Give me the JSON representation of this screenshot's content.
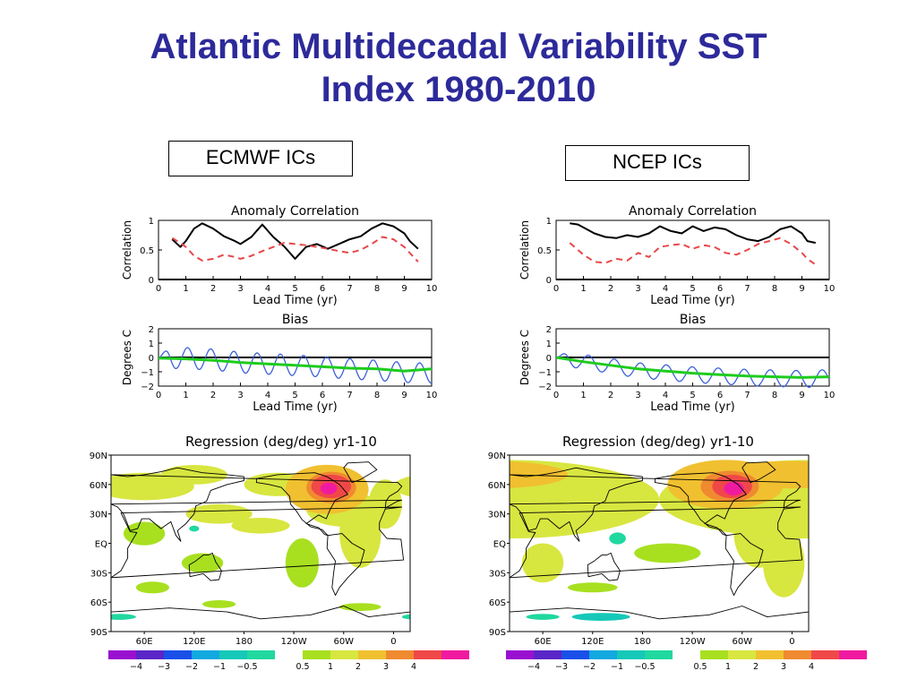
{
  "title": {
    "line1": "Atlantic Multidecadal Variability SST",
    "line2": "Index  1980-2010"
  },
  "ic_labels": {
    "left": "ECMWF ICs",
    "right": "NCEP ICs"
  },
  "colors": {
    "title": "#2d2a9a",
    "black": "#000000",
    "red_dash": "#e8474a",
    "blue": "#3b62d8",
    "green": "#1ecc1e"
  },
  "chart_data": [
    {
      "panel": "ECMWF ICs",
      "type": "line",
      "title": "Anomaly Correlation",
      "xlabel": "Lead Time (yr)",
      "ylabel": "Correlation",
      "xlim": [
        0,
        10
      ],
      "ylim": [
        0,
        1
      ],
      "xticks": [
        "0",
        "1",
        "2",
        "3",
        "4",
        "5",
        "6",
        "7",
        "8",
        "9",
        "10"
      ],
      "yticks": [
        "0",
        "0.5",
        "1"
      ],
      "grid": false,
      "series": [
        {
          "style": "solid-black",
          "x": [
            0.5,
            0.8,
            1.0,
            1.3,
            1.6,
            2.0,
            2.4,
            2.8,
            3.0,
            3.4,
            3.8,
            4.2,
            4.6,
            5.0,
            5.4,
            5.8,
            6.2,
            6.6,
            7.0,
            7.4,
            7.8,
            8.2,
            8.6,
            9.0,
            9.2,
            9.5
          ],
          "y": [
            0.68,
            0.55,
            0.65,
            0.86,
            0.95,
            0.86,
            0.73,
            0.65,
            0.6,
            0.72,
            0.93,
            0.72,
            0.56,
            0.35,
            0.55,
            0.6,
            0.52,
            0.6,
            0.68,
            0.73,
            0.86,
            0.95,
            0.9,
            0.78,
            0.65,
            0.52
          ]
        },
        {
          "style": "dashed-red",
          "x": [
            0.5,
            0.8,
            1.0,
            1.3,
            1.6,
            2.0,
            2.4,
            2.8,
            3.0,
            3.4,
            3.8,
            4.2,
            4.6,
            5.0,
            5.4,
            5.8,
            6.2,
            6.6,
            7.0,
            7.4,
            7.8,
            8.2,
            8.6,
            9.0,
            9.2,
            9.5
          ],
          "y": [
            0.7,
            0.62,
            0.55,
            0.4,
            0.32,
            0.35,
            0.42,
            0.38,
            0.35,
            0.4,
            0.48,
            0.55,
            0.62,
            0.6,
            0.58,
            0.55,
            0.52,
            0.48,
            0.45,
            0.5,
            0.6,
            0.72,
            0.68,
            0.55,
            0.45,
            0.3
          ]
        }
      ]
    },
    {
      "panel": "NCEP ICs",
      "type": "line",
      "title": "Anomaly Correlation",
      "xlabel": "Lead Time (yr)",
      "ylabel": "Correlation",
      "xlim": [
        0,
        10
      ],
      "ylim": [
        0,
        1
      ],
      "xticks": [
        "0",
        "1",
        "2",
        "3",
        "4",
        "5",
        "6",
        "7",
        "8",
        "9",
        "10"
      ],
      "yticks": [
        "0",
        "0.5",
        "1"
      ],
      "grid": false,
      "series": [
        {
          "style": "solid-black",
          "x": [
            0.5,
            0.8,
            1.0,
            1.4,
            1.8,
            2.2,
            2.6,
            3.0,
            3.4,
            3.8,
            4.2,
            4.6,
            5.0,
            5.4,
            5.8,
            6.2,
            6.6,
            7.0,
            7.4,
            7.8,
            8.2,
            8.6,
            9.0,
            9.2,
            9.5
          ],
          "y": [
            0.95,
            0.93,
            0.88,
            0.78,
            0.72,
            0.7,
            0.75,
            0.72,
            0.78,
            0.9,
            0.82,
            0.78,
            0.9,
            0.82,
            0.88,
            0.85,
            0.75,
            0.68,
            0.65,
            0.72,
            0.85,
            0.9,
            0.78,
            0.65,
            0.62
          ]
        },
        {
          "style": "dashed-red",
          "x": [
            0.5,
            0.8,
            1.0,
            1.4,
            1.8,
            2.2,
            2.6,
            3.0,
            3.4,
            3.8,
            4.2,
            4.6,
            5.0,
            5.4,
            5.8,
            6.2,
            6.6,
            7.0,
            7.4,
            7.8,
            8.2,
            8.6,
            9.0,
            9.2,
            9.5
          ],
          "y": [
            0.62,
            0.5,
            0.42,
            0.3,
            0.28,
            0.35,
            0.32,
            0.45,
            0.38,
            0.55,
            0.58,
            0.6,
            0.52,
            0.58,
            0.55,
            0.45,
            0.42,
            0.5,
            0.6,
            0.65,
            0.7,
            0.6,
            0.45,
            0.35,
            0.25
          ]
        }
      ]
    },
    {
      "panel": "ECMWF ICs",
      "type": "line",
      "title": "Bias",
      "xlabel": "Lead Time (yr)",
      "ylabel": "Degrees C",
      "xlim": [
        0,
        10
      ],
      "ylim": [
        -2,
        2
      ],
      "xticks": [
        "0",
        "1",
        "2",
        "3",
        "4",
        "5",
        "6",
        "7",
        "8",
        "9",
        "10"
      ],
      "yticks": [
        "-2",
        "-1",
        "0",
        "1",
        "2"
      ],
      "grid": false,
      "series": [
        {
          "style": "solid-blue",
          "oscillation": {
            "amp_start": 0.75,
            "amp_end": 0.7,
            "period": 0.85
          },
          "x": [
            0,
            1,
            2,
            3,
            4,
            5,
            6,
            7,
            8,
            9,
            10
          ],
          "y": [
            0,
            -0.05,
            -0.15,
            -0.35,
            -0.45,
            -0.55,
            -0.65,
            -0.8,
            -0.9,
            -1.05,
            -1.1
          ]
        },
        {
          "style": "solid-green",
          "x": [
            0,
            1,
            2,
            3,
            4,
            5,
            6,
            7,
            8,
            9,
            10
          ],
          "y": [
            -0.05,
            -0.1,
            -0.2,
            -0.35,
            -0.45,
            -0.55,
            -0.65,
            -0.75,
            -0.8,
            -0.95,
            -0.8
          ]
        }
      ]
    },
    {
      "panel": "NCEP ICs",
      "type": "line",
      "title": "Bias",
      "xlabel": "Lead Time (yr)",
      "ylabel": "Degrees C",
      "xlim": [
        0,
        10
      ],
      "ylim": [
        -2,
        2
      ],
      "xticks": [
        "0",
        "1",
        "2",
        "3",
        "4",
        "5",
        "6",
        "7",
        "8",
        "9",
        "10"
      ],
      "yticks": [
        "-2",
        "-1",
        "0",
        "1",
        "2"
      ],
      "grid": false,
      "series": [
        {
          "style": "solid-blue",
          "oscillation": {
            "amp_start": 0.5,
            "amp_end": 0.6,
            "period": 0.95
          },
          "x": [
            0,
            1,
            2,
            3,
            4,
            5,
            6,
            7,
            8,
            9,
            10
          ],
          "y": [
            0,
            -0.3,
            -0.6,
            -0.9,
            -1.05,
            -1.2,
            -1.3,
            -1.4,
            -1.45,
            -1.5,
            -1.45
          ]
        },
        {
          "style": "solid-green",
          "x": [
            0,
            1,
            2,
            3,
            4,
            5,
            6,
            7,
            8,
            9,
            10
          ],
          "y": [
            0,
            -0.3,
            -0.55,
            -0.8,
            -0.95,
            -1.1,
            -1.2,
            -1.3,
            -1.35,
            -1.4,
            -1.35
          ]
        }
      ]
    },
    {
      "panel": "ECMWF ICs",
      "type": "heatmap",
      "title": "Regression (deg/deg) yr1-10",
      "lat_ticks": [
        "90N",
        "60N",
        "30N",
        "EQ",
        "30S",
        "60S",
        "90S"
      ],
      "lon_ticks": [
        "60E",
        "120E",
        "180",
        "120W",
        "60W",
        "0"
      ],
      "blobs": [
        {
          "lon": -75,
          "lat": 57,
          "rx": 30,
          "ry": 16,
          "level": 4
        },
        {
          "lon": -75,
          "lat": 58,
          "rx": 24,
          "ry": 12,
          "level": 5
        },
        {
          "lon": -78,
          "lat": 56,
          "rx": 10,
          "ry": 6,
          "level": 6
        },
        {
          "lon": -80,
          "lat": 55,
          "rx": 50,
          "ry": 25,
          "level": 3
        },
        {
          "lon": -60,
          "lat": 35,
          "rx": 45,
          "ry": 18,
          "level": 2
        },
        {
          "lon": -40,
          "lat": 10,
          "rx": 25,
          "ry": 35,
          "level": 2
        },
        {
          "lon": -10,
          "lat": 40,
          "rx": 20,
          "ry": 25,
          "level": 2
        },
        {
          "lon": -140,
          "lat": 60,
          "rx": 40,
          "ry": 12,
          "level": 2
        },
        {
          "lon": 60,
          "lat": 58,
          "rx": 60,
          "ry": 14,
          "level": 2
        },
        {
          "lon": 120,
          "lat": 70,
          "rx": 40,
          "ry": 10,
          "level": 2
        },
        {
          "lon": 150,
          "lat": 30,
          "rx": 40,
          "ry": 10,
          "level": 2
        },
        {
          "lon": -160,
          "lat": 18,
          "rx": 35,
          "ry": 8,
          "level": 2
        },
        {
          "lon": 60,
          "lat": 10,
          "rx": 25,
          "ry": 12,
          "level": 1
        },
        {
          "lon": 130,
          "lat": -20,
          "rx": 25,
          "ry": 10,
          "level": 1
        },
        {
          "lon": 70,
          "lat": -45,
          "rx": 20,
          "ry": 6,
          "level": 1
        },
        {
          "lon": 150,
          "lat": -62,
          "rx": 20,
          "ry": 4,
          "level": 1
        },
        {
          "lon": -110,
          "lat": -20,
          "rx": 20,
          "ry": 25,
          "level": 1
        },
        {
          "lon": 120,
          "lat": 15,
          "rx": 6,
          "ry": 3,
          "level": -1
        },
        {
          "lon": 30,
          "lat": -75,
          "rx": 20,
          "ry": 3,
          "level": -1
        },
        {
          "lon": -40,
          "lat": -65,
          "rx": 25,
          "ry": 4,
          "level": 1
        }
      ]
    },
    {
      "panel": "NCEP ICs",
      "type": "heatmap",
      "title": "Regression (deg/deg) yr1-10",
      "lat_ticks": [
        "90N",
        "60N",
        "30N",
        "EQ",
        "30S",
        "60S",
        "90S"
      ],
      "lon_ticks": [
        "60E",
        "120E",
        "180",
        "120W",
        "60W",
        "0"
      ],
      "blobs": [
        {
          "lon": -75,
          "lat": 58,
          "rx": 35,
          "ry": 16,
          "level": 4
        },
        {
          "lon": -72,
          "lat": 58,
          "rx": 24,
          "ry": 12,
          "level": 5
        },
        {
          "lon": -70,
          "lat": 56,
          "rx": 12,
          "ry": 7,
          "level": 6
        },
        {
          "lon": -80,
          "lat": 60,
          "rx": 70,
          "ry": 25,
          "level": 3
        },
        {
          "lon": 0,
          "lat": 70,
          "rx": 90,
          "ry": 14,
          "level": 3
        },
        {
          "lon": 20,
          "lat": 45,
          "rx": 180,
          "ry": 40,
          "level": 2
        },
        {
          "lon": -40,
          "lat": 10,
          "rx": 30,
          "ry": 35,
          "level": 2
        },
        {
          "lon": -10,
          "lat": -20,
          "rx": 25,
          "ry": 35,
          "level": 2
        },
        {
          "lon": 60,
          "lat": -20,
          "rx": 25,
          "ry": 20,
          "level": 2
        },
        {
          "lon": -150,
          "lat": -10,
          "rx": 40,
          "ry": 10,
          "level": 1
        },
        {
          "lon": 120,
          "lat": -45,
          "rx": 30,
          "ry": 5,
          "level": 1
        },
        {
          "lon": -95,
          "lat": 22,
          "rx": 8,
          "ry": 8,
          "level": -1
        },
        {
          "lon": 150,
          "lat": 5,
          "rx": 10,
          "ry": 6,
          "level": -1
        },
        {
          "lon": 130,
          "lat": -75,
          "rx": 35,
          "ry": 4,
          "level": -2
        },
        {
          "lon": 60,
          "lat": -75,
          "rx": 20,
          "ry": 3,
          "level": -1
        }
      ]
    }
  ],
  "colorbar": {
    "labels": [
      "−4",
      "−3",
      "−2",
      "−1",
      "−0.5",
      "0.5",
      "1",
      "2",
      "3",
      "4"
    ],
    "colors": [
      "#9a10d0",
      "#5a26c8",
      "#1a50e8",
      "#12a8e0",
      "#16c8b8",
      "#20d8a0",
      "#ffffff",
      "#a8e020",
      "#d8e640",
      "#f0c030",
      "#f08a30",
      "#f04848",
      "#f01aa0"
    ]
  }
}
